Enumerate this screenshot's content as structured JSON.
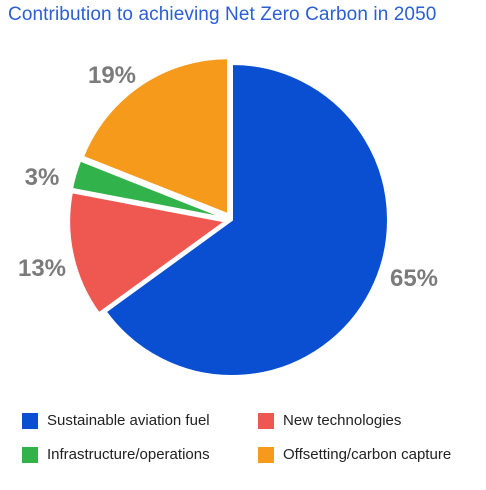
{
  "colors": {
    "sustainable_aviation_fuel": "#0a4fd2",
    "new_technologies": "#ef5751",
    "infrastructure_operations": "#32b24b",
    "offsetting_carbon_capture": "#f59a1b"
  },
  "chart_data": {
    "type": "pie",
    "title": "Contribution to achieving Net Zero Carbon in 2050",
    "slices": [
      {
        "name": "Sustainable aviation fuel",
        "value": 65,
        "label": "65%",
        "color": "#0a4fd2",
        "exploded": false
      },
      {
        "name": "New technologies",
        "value": 13,
        "label": "13%",
        "color": "#ef5751",
        "exploded": true
      },
      {
        "name": "Infrastructure/operations",
        "value": 3,
        "label": "3%",
        "color": "#32b24b",
        "exploded": true
      },
      {
        "name": "Offsetting/carbon capture",
        "value": 19,
        "label": "19%",
        "color": "#f59a1b",
        "exploded": true
      }
    ],
    "legend": [
      {
        "label": "Sustainable aviation fuel",
        "color": "#0a4fd2"
      },
      {
        "label": "New technologies",
        "color": "#ef5751"
      },
      {
        "label": "Infrastructure/operations",
        "color": "#32b24b"
      },
      {
        "label": "Offsetting/carbon capture",
        "color": "#f59a1b"
      }
    ],
    "legend_position": "bottom"
  }
}
